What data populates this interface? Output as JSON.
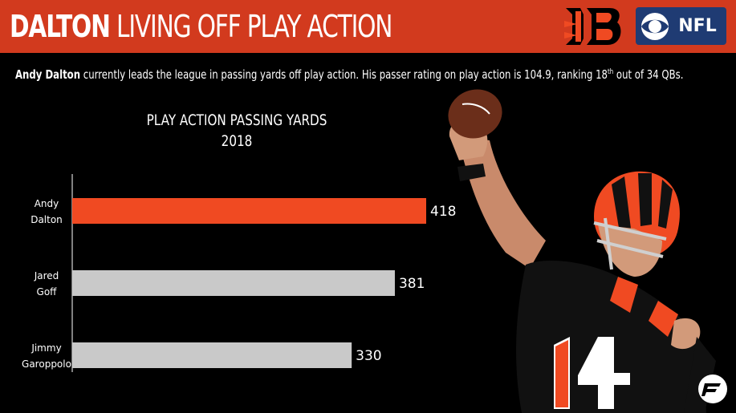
{
  "header": {
    "title_bold": "DALTON",
    "title_rest": "LIVING OFF PLAY ACTION",
    "network_logo_text": "NFL"
  },
  "subtitle": {
    "name": "Andy Dalton",
    "text_before_sup": "currently leads the league in passing yards off play action. His passer rating on play action is 104.9, ranking 18",
    "sup": "th",
    "text_after_sup": "out of 34 QBs."
  },
  "colors": {
    "header_bg": "#d23a1e",
    "highlight_bar": "#f04a22",
    "default_bar": "#c9c9c9",
    "background": "#000000"
  },
  "icons": {
    "team_logo": "bengals-logo-icon",
    "network_logo": "cbs-nfl-logo-icon",
    "player_photo": "player-photo-icon",
    "watermark": "pff-logo-icon"
  },
  "chart_data": {
    "type": "bar",
    "orientation": "horizontal",
    "title": "PLAY ACTION PASSING YARDS",
    "subtitle": "2018",
    "categories": [
      [
        "Andy",
        "Dalton"
      ],
      [
        "Jared",
        "Goff"
      ],
      [
        "Jimmy",
        "Garoppolo"
      ]
    ],
    "values": [
      418,
      381,
      330
    ],
    "highlight_index": 0,
    "xlim": [
      0,
      418
    ],
    "grid": false,
    "legend": "none",
    "data_labels": true
  }
}
